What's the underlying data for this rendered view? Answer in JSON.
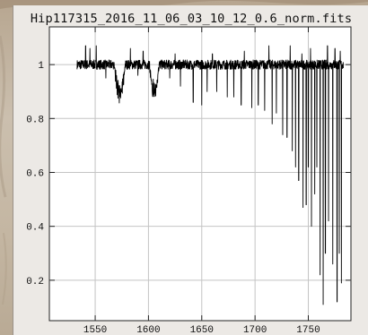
{
  "window": {
    "title": "Hip117315_2016_11_06_03_10_12_0.6_norm.fits"
  },
  "colors": {
    "background_image": "#c9bba9",
    "plot_window": "#ece9e5",
    "plot_area": "#ffffff",
    "grid": "#c4c4c4",
    "trace": "#000000"
  },
  "chart_data": {
    "type": "line",
    "title": "Hip117315_2016_11_06_03_10_12_0.6_norm.fits",
    "xlabel": "",
    "ylabel": "",
    "xlim": [
      1507,
      1790
    ],
    "ylim": [
      0.05,
      1.14
    ],
    "grid": true,
    "x_ticks": [
      1550,
      1600,
      1650,
      1700,
      1750
    ],
    "y_ticks": [
      0.2,
      0.4,
      0.6,
      0.8,
      1
    ],
    "x_tick_labels": [
      "1550",
      "1600",
      "1650",
      "1700",
      "1750"
    ],
    "y_tick_labels": [
      "0.2",
      "0.4",
      "0.6",
      "0.8",
      "1"
    ],
    "series": [
      {
        "description": "normalized spectrum",
        "x_range": [
          1533,
          1783
        ],
        "continuum": 1.0,
        "absorption_bands": [
          {
            "x": 1568,
            "x_end": 1578,
            "min": 0.87
          },
          {
            "x": 1601,
            "x_end": 1610,
            "min": 0.88
          }
        ],
        "absorption_lines": [
          {
            "x": 1560,
            "y": 0.95
          },
          {
            "x": 1590,
            "y": 0.96
          },
          {
            "x": 1620,
            "y": 0.95
          },
          {
            "x": 1630,
            "y": 0.92
          },
          {
            "x": 1642,
            "y": 0.86
          },
          {
            "x": 1650,
            "y": 0.85
          },
          {
            "x": 1655,
            "y": 0.9
          },
          {
            "x": 1664,
            "y": 0.9
          },
          {
            "x": 1674,
            "y": 0.88
          },
          {
            "x": 1680,
            "y": 0.88
          },
          {
            "x": 1687,
            "y": 0.85
          },
          {
            "x": 1697,
            "y": 0.84
          },
          {
            "x": 1703,
            "y": 0.85
          },
          {
            "x": 1709,
            "y": 0.83
          },
          {
            "x": 1716,
            "y": 0.78
          },
          {
            "x": 1720,
            "y": 0.82
          },
          {
            "x": 1726,
            "y": 0.74
          },
          {
            "x": 1730,
            "y": 0.73
          },
          {
            "x": 1735,
            "y": 0.68
          },
          {
            "x": 1738,
            "y": 0.62
          },
          {
            "x": 1741,
            "y": 0.57
          },
          {
            "x": 1745,
            "y": 0.47
          },
          {
            "x": 1748,
            "y": 0.48
          },
          {
            "x": 1750,
            "y": 0.62
          },
          {
            "x": 1753,
            "y": 0.4
          },
          {
            "x": 1756,
            "y": 0.52
          },
          {
            "x": 1758,
            "y": 0.62
          },
          {
            "x": 1761,
            "y": 0.22
          },
          {
            "x": 1764,
            "y": 0.11
          },
          {
            "x": 1766,
            "y": 0.3
          },
          {
            "x": 1769,
            "y": 0.42
          },
          {
            "x": 1773,
            "y": 0.26
          },
          {
            "x": 1777,
            "y": 0.12
          },
          {
            "x": 1779,
            "y": 0.3
          },
          {
            "x": 1781,
            "y": 0.19
          }
        ],
        "emission_spikes": [
          {
            "x": 1541,
            "y": 1.07
          },
          {
            "x": 1545,
            "y": 1.06
          },
          {
            "x": 1551,
            "y": 1.07
          },
          {
            "x": 1583,
            "y": 1.06
          },
          {
            "x": 1595,
            "y": 1.05
          },
          {
            "x": 1625,
            "y": 1.04
          },
          {
            "x": 1660,
            "y": 1.04
          },
          {
            "x": 1690,
            "y": 1.05
          },
          {
            "x": 1713,
            "y": 1.07
          },
          {
            "x": 1733,
            "y": 1.07
          },
          {
            "x": 1744,
            "y": 1.04
          },
          {
            "x": 1752,
            "y": 1.06
          },
          {
            "x": 1768,
            "y": 1.07
          },
          {
            "x": 1775,
            "y": 1.06
          },
          {
            "x": 1780,
            "y": 1.05
          }
        ]
      }
    ]
  }
}
